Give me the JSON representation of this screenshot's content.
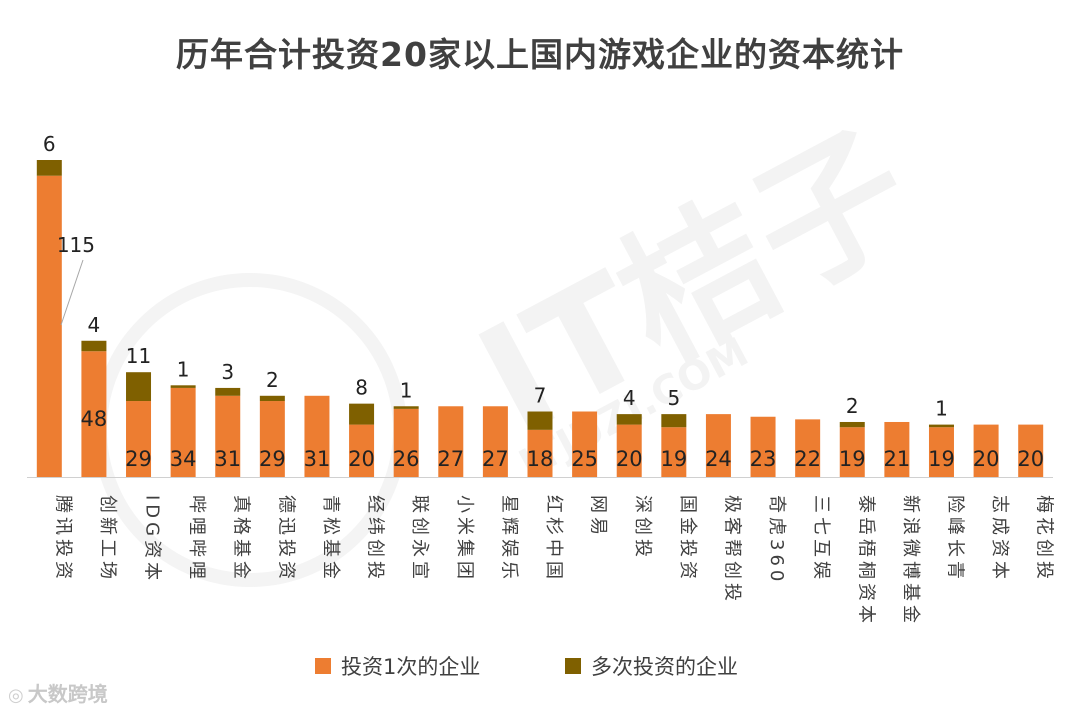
{
  "chart_data": {
    "type": "bar",
    "stacked": true,
    "title": "历年合计投资20家以上国内游戏企业的资本统计",
    "categories": [
      "腾讯投资",
      "创新工场",
      "IDG资本",
      "哔哩哔哩",
      "真格基金",
      "德迅投资",
      "青松基金",
      "经纬创投",
      "联创永宣",
      "小米集团",
      "星辉娱乐",
      "红杉中国",
      "网易",
      "深创投",
      "国金投资",
      "极客帮创投",
      "奇虎360",
      "三七互娱",
      "泰岳梧桐资本",
      "新浪微博基金",
      "险峰长青",
      "志成资本",
      "梅花创投"
    ],
    "series": [
      {
        "name": "投资1次的企业",
        "color": "#ED7D31",
        "values": [
          115,
          48,
          29,
          34,
          31,
          29,
          31,
          20,
          26,
          27,
          27,
          18,
          25,
          20,
          19,
          24,
          23,
          22,
          19,
          21,
          19,
          20,
          20
        ]
      },
      {
        "name": "多次投资的企业",
        "color": "#7F6000",
        "values": [
          6,
          4,
          11,
          1,
          3,
          2,
          0,
          8,
          1,
          0,
          0,
          7,
          0,
          4,
          5,
          0,
          0,
          0,
          2,
          0,
          1,
          0,
          0
        ]
      }
    ],
    "ylim": [
      0,
      121
    ],
    "legend_position": "bottom"
  },
  "watermarks": {
    "center_text": "IT桔子",
    "center_sub": "ITJUZI.COM",
    "corner_text": "大数跨境"
  }
}
